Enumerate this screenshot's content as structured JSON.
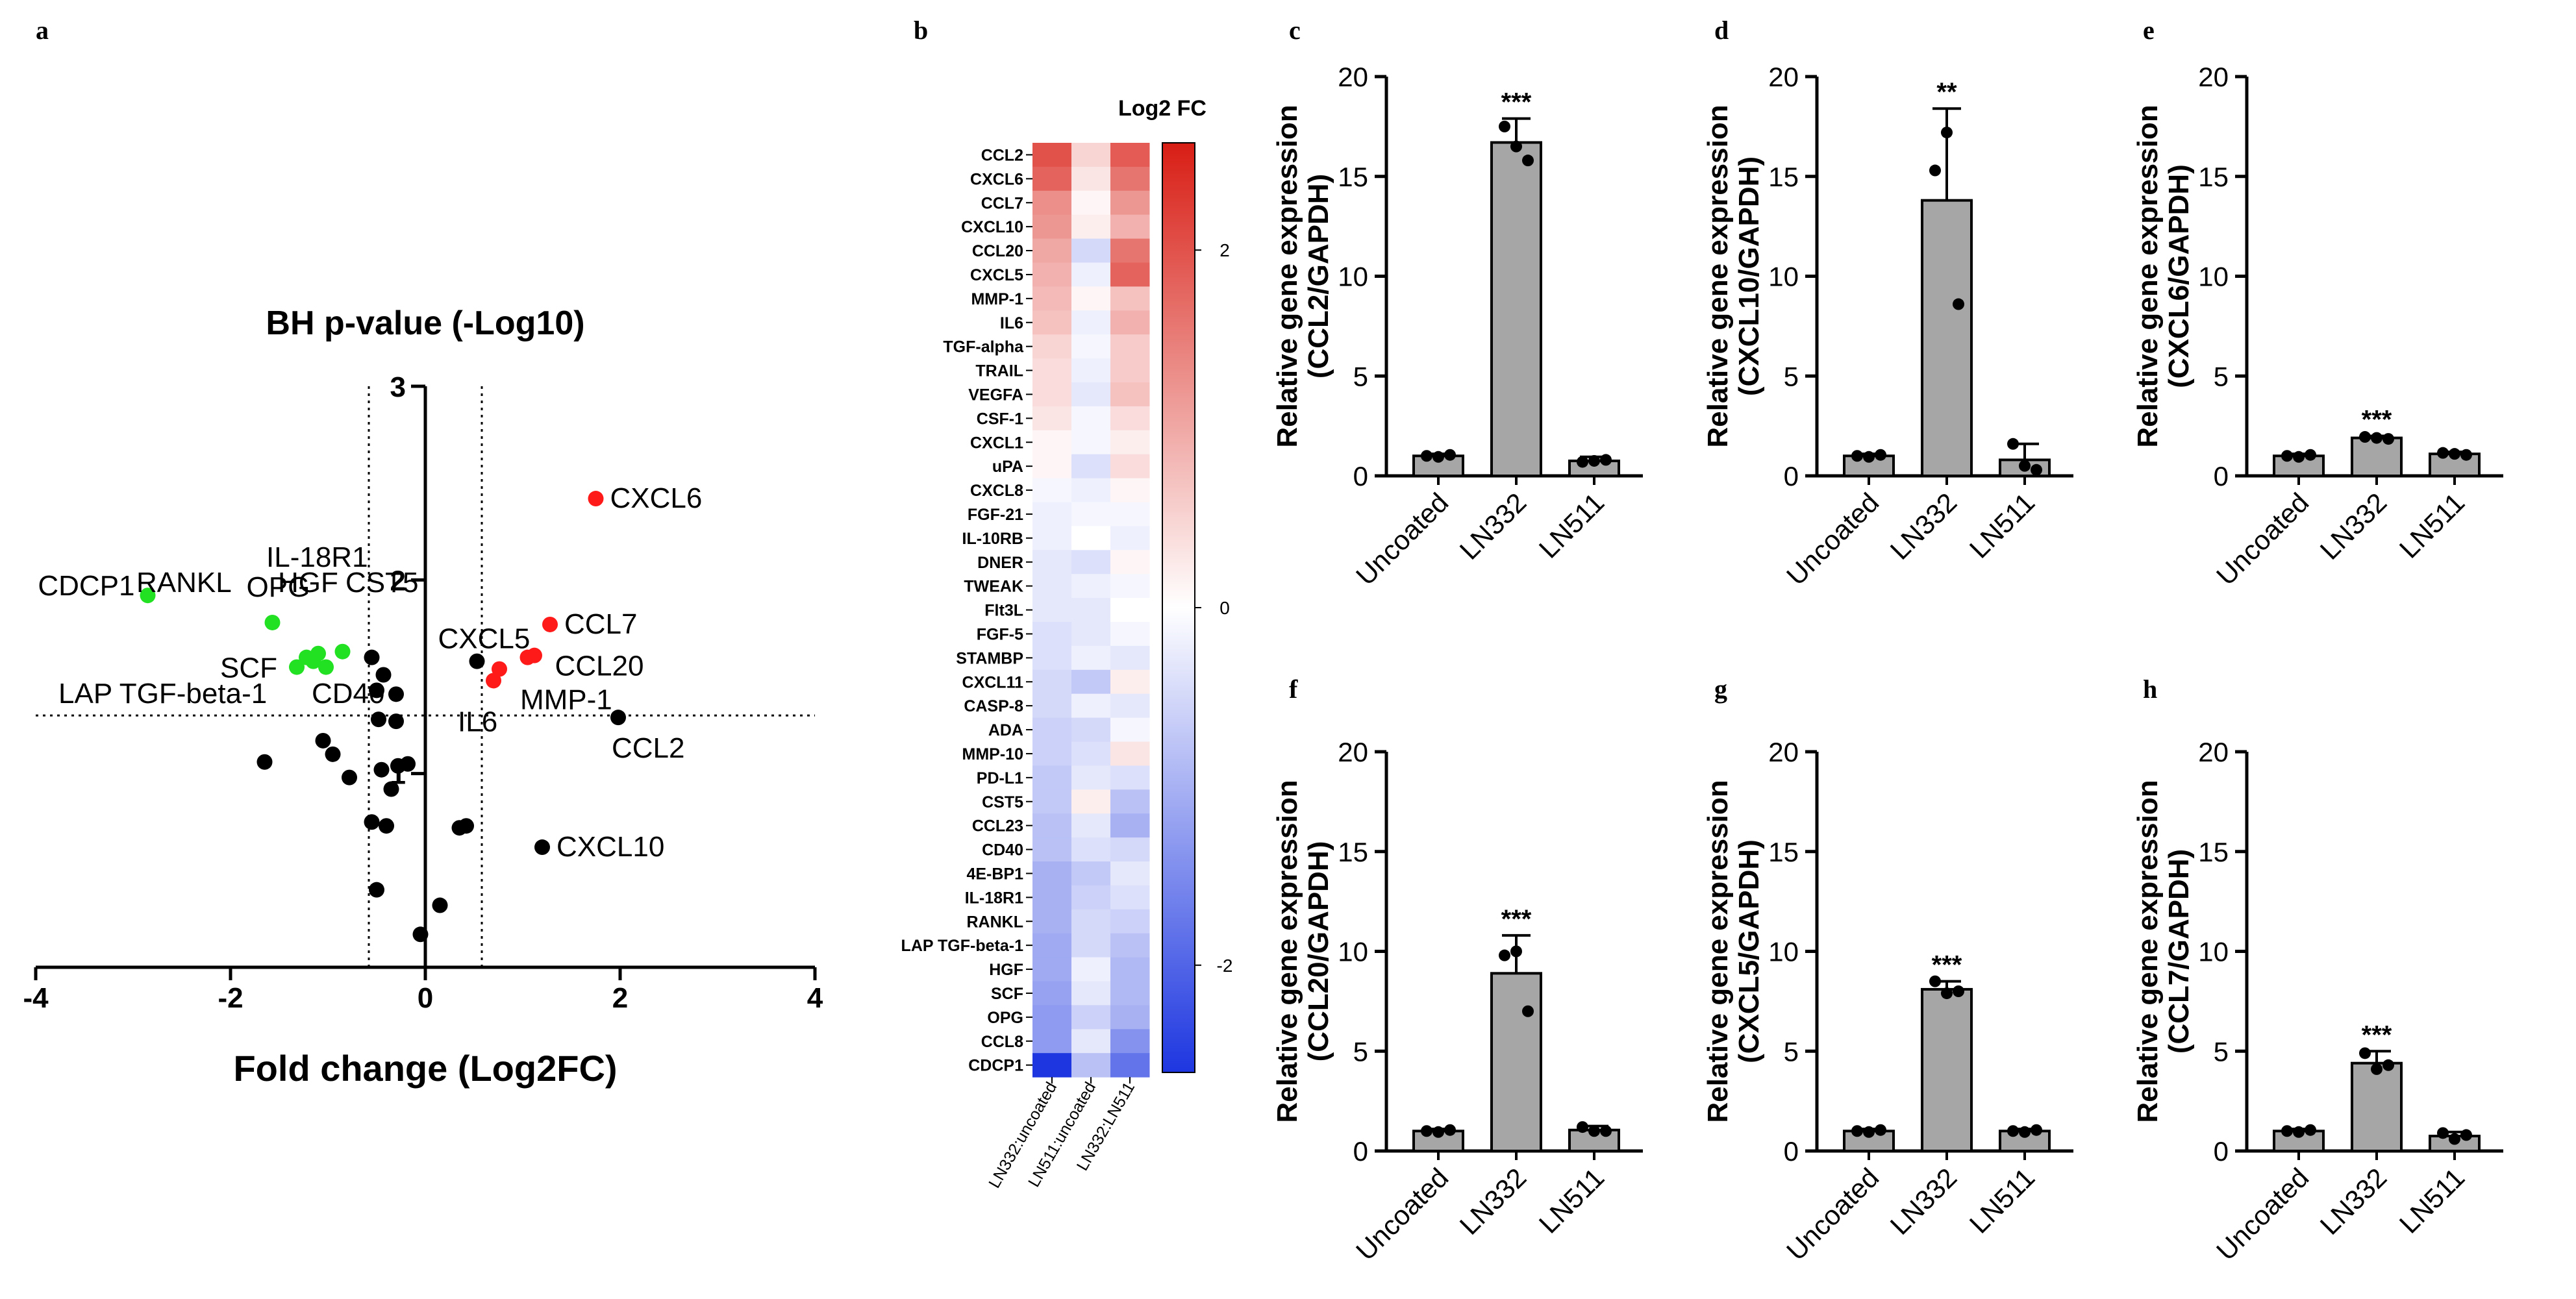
{
  "panel_letters": [
    "a",
    "b",
    "c",
    "d",
    "e",
    "f",
    "g",
    "h"
  ],
  "chart_data": [
    {
      "id": "volcano",
      "type": "scatter",
      "panel": "a",
      "title": "BH p-value (-Log10)",
      "xlabel": "Fold change (Log2FC)",
      "xlim": [
        -4,
        4
      ],
      "ylim": [
        0,
        3
      ],
      "xticks": [
        -4,
        -2,
        0,
        2,
        4
      ],
      "yticks": [
        1,
        2,
        3
      ],
      "xtick_labels": [
        "-4",
        "-2",
        "0",
        "2",
        "4"
      ],
      "ytick_labels": [
        "1",
        "2",
        "3"
      ],
      "threshold_x": [
        -0.58,
        0.58
      ],
      "threshold_y": 1.3,
      "colors": {
        "up": "#ff1a1a",
        "down": "#22e022",
        "ns": "#000000"
      },
      "points": [
        {
          "x": 1.75,
          "y": 2.42,
          "status": "up",
          "label": "CXCL6"
        },
        {
          "x": 1.28,
          "y": 1.77,
          "status": "up",
          "label": "CCL7"
        },
        {
          "x": 1.05,
          "y": 1.6,
          "status": "up",
          "label": "CCL20"
        },
        {
          "x": 1.12,
          "y": 1.61,
          "status": "up",
          "label": ""
        },
        {
          "x": 0.76,
          "y": 1.54,
          "status": "up",
          "label": "MMP-1"
        },
        {
          "x": 0.7,
          "y": 1.48,
          "status": "up",
          "label": "IL6"
        },
        {
          "x": 0.53,
          "y": 1.58,
          "status": "ns",
          "label": "CXCL5"
        },
        {
          "x": 1.98,
          "y": 1.29,
          "status": "ns",
          "label": "CCL2"
        },
        {
          "x": 1.2,
          "y": 0.62,
          "status": "ns",
          "label": "CXCL10"
        },
        {
          "x": -2.85,
          "y": 1.92,
          "status": "down",
          "label": "CDCP1"
        },
        {
          "x": -1.57,
          "y": 1.78,
          "status": "down",
          "label": "OPG"
        },
        {
          "x": -1.32,
          "y": 1.55,
          "status": "down",
          "label": "SCF"
        },
        {
          "x": -1.22,
          "y": 1.6,
          "status": "down",
          "label": ""
        },
        {
          "x": -1.15,
          "y": 1.58,
          "status": "down",
          "label": ""
        },
        {
          "x": -1.1,
          "y": 1.62,
          "status": "down",
          "label": ""
        },
        {
          "x": -1.02,
          "y": 1.55,
          "status": "down",
          "label": ""
        },
        {
          "x": -0.85,
          "y": 1.63,
          "status": "down",
          "label": ""
        },
        {
          "x": -0.55,
          "y": 1.6,
          "status": "ns",
          "label": ""
        },
        {
          "x": -0.43,
          "y": 1.51,
          "status": "ns",
          "label": ""
        },
        {
          "x": -0.5,
          "y": 1.43,
          "status": "ns",
          "label": ""
        },
        {
          "x": -0.3,
          "y": 1.41,
          "status": "ns",
          "label": ""
        },
        {
          "x": -0.48,
          "y": 1.28,
          "status": "ns",
          "label": ""
        },
        {
          "x": -0.3,
          "y": 1.27,
          "status": "ns",
          "label": ""
        },
        {
          "x": -1.05,
          "y": 1.17,
          "status": "ns",
          "label": ""
        },
        {
          "x": -0.95,
          "y": 1.1,
          "status": "ns",
          "label": ""
        },
        {
          "x": -1.65,
          "y": 1.06,
          "status": "ns",
          "label": ""
        },
        {
          "x": -0.45,
          "y": 1.02,
          "status": "ns",
          "label": ""
        },
        {
          "x": -0.28,
          "y": 1.04,
          "status": "ns",
          "label": ""
        },
        {
          "x": -0.18,
          "y": 1.05,
          "status": "ns",
          "label": ""
        },
        {
          "x": -0.78,
          "y": 0.98,
          "status": "ns",
          "label": ""
        },
        {
          "x": -0.35,
          "y": 0.92,
          "status": "ns",
          "label": ""
        },
        {
          "x": -0.55,
          "y": 0.75,
          "status": "ns",
          "label": ""
        },
        {
          "x": -0.4,
          "y": 0.73,
          "status": "ns",
          "label": ""
        },
        {
          "x": 0.35,
          "y": 0.72,
          "status": "ns",
          "label": ""
        },
        {
          "x": 0.42,
          "y": 0.73,
          "status": "ns",
          "label": ""
        },
        {
          "x": -0.5,
          "y": 0.4,
          "status": "ns",
          "label": ""
        },
        {
          "x": 0.15,
          "y": 0.32,
          "status": "ns",
          "label": ""
        },
        {
          "x": -0.05,
          "y": 0.17,
          "status": "ns",
          "label": ""
        }
      ],
      "extra_labels": [
        "IL-18R1",
        "RANKL",
        "HGF",
        "CST5",
        "LAP TGF-beta-1",
        "CD40"
      ]
    },
    {
      "id": "heatmap",
      "type": "heatmap",
      "panel": "b",
      "title": "Log2 FC",
      "columns": [
        "LN332:uncoated",
        "LN511:uncoated",
        "LN332:LN511"
      ],
      "colorbar_ticks": [
        2,
        0,
        -2
      ],
      "colorbar_tick_labels": [
        "2",
        "0",
        "-2"
      ],
      "vmin": -2.6,
      "vmax": 2.6,
      "colors": {
        "low": "#1d36e0",
        "mid": "#ffffff",
        "high": "#d81e15"
      },
      "rows": [
        {
          "label": "CCL2",
          "values": [
            2.0,
            0.5,
            1.9
          ]
        },
        {
          "label": "CXCL6",
          "values": [
            1.8,
            0.3,
            1.6
          ]
        },
        {
          "label": "CCL7",
          "values": [
            1.3,
            0.1,
            1.2
          ]
        },
        {
          "label": "CXCL10",
          "values": [
            1.2,
            0.2,
            0.9
          ]
        },
        {
          "label": "CCL20",
          "values": [
            1.0,
            -0.5,
            1.6
          ]
        },
        {
          "label": "CXCL5",
          "values": [
            0.9,
            -0.2,
            1.8
          ]
        },
        {
          "label": "MMP-1",
          "values": [
            0.8,
            0.1,
            0.7
          ]
        },
        {
          "label": "IL6",
          "values": [
            0.7,
            -0.2,
            0.9
          ]
        },
        {
          "label": "TGF-alpha",
          "values": [
            0.5,
            -0.1,
            0.6
          ]
        },
        {
          "label": "TRAIL",
          "values": [
            0.4,
            -0.2,
            0.6
          ]
        },
        {
          "label": "VEGFA",
          "values": [
            0.4,
            -0.3,
            0.7
          ]
        },
        {
          "label": "CSF-1",
          "values": [
            0.3,
            -0.1,
            0.4
          ]
        },
        {
          "label": "CXCL1",
          "values": [
            0.1,
            -0.1,
            0.2
          ]
        },
        {
          "label": "uPA",
          "values": [
            0.1,
            -0.4,
            0.4
          ]
        },
        {
          "label": "CXCL8",
          "values": [
            -0.1,
            -0.2,
            0.1
          ]
        },
        {
          "label": "FGF-21",
          "values": [
            -0.2,
            -0.1,
            -0.1
          ]
        },
        {
          "label": "IL-10RB",
          "values": [
            -0.2,
            0.0,
            -0.2
          ]
        },
        {
          "label": "DNER",
          "values": [
            -0.3,
            -0.4,
            0.1
          ]
        },
        {
          "label": "TWEAK",
          "values": [
            -0.3,
            -0.2,
            -0.1
          ]
        },
        {
          "label": "Flt3L",
          "values": [
            -0.3,
            -0.3,
            0.0
          ]
        },
        {
          "label": "FGF-5",
          "values": [
            -0.4,
            -0.3,
            -0.1
          ]
        },
        {
          "label": "STAMBP",
          "values": [
            -0.4,
            -0.2,
            -0.3
          ]
        },
        {
          "label": "CXCL11",
          "values": [
            -0.5,
            -0.7,
            0.2
          ]
        },
        {
          "label": "CASP-8",
          "values": [
            -0.5,
            -0.2,
            -0.3
          ]
        },
        {
          "label": "ADA",
          "values": [
            -0.6,
            -0.5,
            -0.1
          ]
        },
        {
          "label": "MMP-10",
          "values": [
            -0.6,
            -0.4,
            0.3
          ]
        },
        {
          "label": "PD-L1",
          "values": [
            -0.7,
            -0.3,
            -0.4
          ]
        },
        {
          "label": "CST5",
          "values": [
            -0.7,
            0.2,
            -0.8
          ]
        },
        {
          "label": "CCL23",
          "values": [
            -0.8,
            -0.3,
            -1.0
          ]
        },
        {
          "label": "CD40",
          "values": [
            -0.8,
            -0.4,
            -0.5
          ]
        },
        {
          "label": "4E-BP1",
          "values": [
            -1.0,
            -0.7,
            -0.3
          ]
        },
        {
          "label": "IL-18R1",
          "values": [
            -1.0,
            -0.6,
            -0.4
          ]
        },
        {
          "label": "RANKL",
          "values": [
            -1.0,
            -0.5,
            -0.6
          ]
        },
        {
          "label": "LAP TGF-beta-1",
          "values": [
            -1.1,
            -0.5,
            -0.8
          ]
        },
        {
          "label": "HGF",
          "values": [
            -1.1,
            -0.2,
            -0.9
          ]
        },
        {
          "label": "SCF",
          "values": [
            -1.2,
            -0.3,
            -0.9
          ]
        },
        {
          "label": "OPG",
          "values": [
            -1.3,
            -0.6,
            -1.0
          ]
        },
        {
          "label": "CCL8",
          "values": [
            -1.3,
            -0.3,
            -1.4
          ]
        },
        {
          "label": "CDCP1",
          "values": [
            -2.6,
            -0.8,
            -1.8
          ]
        }
      ]
    },
    {
      "id": "bar-c",
      "type": "bar",
      "panel": "c",
      "categories": [
        "Uncoated",
        "LN332",
        "LN511"
      ],
      "values": [
        1.0,
        16.7,
        0.75
      ],
      "errors": [
        0.1,
        1.2,
        0.2
      ],
      "replicates": [
        [
          1.0,
          0.95,
          1.05
        ],
        [
          17.5,
          16.5,
          15.8
        ],
        [
          0.7,
          0.75,
          0.8
        ]
      ],
      "significance": [
        "",
        "***",
        ""
      ],
      "ylabel_line1": "Relative gene expression",
      "ylabel_line2": "(CCL2/GAPDH)",
      "ylim": [
        0,
        20
      ],
      "yticks": [
        0,
        5,
        10,
        15,
        20
      ],
      "ytick_labels": [
        "0",
        "5",
        "10",
        "15",
        "20"
      ]
    },
    {
      "id": "bar-d",
      "type": "bar",
      "panel": "d",
      "categories": [
        "Uncoated",
        "LN332",
        "LN511"
      ],
      "values": [
        1.0,
        13.8,
        0.8
      ],
      "errors": [
        0.1,
        4.6,
        0.8
      ],
      "replicates": [
        [
          1.0,
          0.95,
          1.05
        ],
        [
          15.3,
          17.2,
          8.6
        ],
        [
          1.6,
          0.5,
          0.3
        ]
      ],
      "significance": [
        "",
        "**",
        ""
      ],
      "ylabel_line1": "Relative gene expression",
      "ylabel_line2": "(CXCL10/GAPDH)",
      "ylim": [
        0,
        20
      ],
      "yticks": [
        0,
        5,
        10,
        15,
        20
      ],
      "ytick_labels": [
        "0",
        "5",
        "10",
        "15",
        "20"
      ]
    },
    {
      "id": "bar-e",
      "type": "bar",
      "panel": "e",
      "categories": [
        "Uncoated",
        "LN332",
        "LN511"
      ],
      "values": [
        1.0,
        1.9,
        1.1
      ],
      "errors": [
        0.1,
        0.1,
        0.1
      ],
      "replicates": [
        [
          1.0,
          0.95,
          1.05
        ],
        [
          1.95,
          1.9,
          1.85
        ],
        [
          1.15,
          1.1,
          1.05
        ]
      ],
      "significance": [
        "",
        "***",
        ""
      ],
      "ylabel_line1": "Relative gene expression",
      "ylabel_line2": "(CXCL6/GAPDH)",
      "ylim": [
        0,
        20
      ],
      "yticks": [
        0,
        5,
        10,
        15,
        20
      ],
      "ytick_labels": [
        "0",
        "5",
        "10",
        "15",
        "20"
      ]
    },
    {
      "id": "bar-f",
      "type": "bar",
      "panel": "f",
      "categories": [
        "Uncoated",
        "LN332",
        "LN511"
      ],
      "values": [
        1.0,
        8.9,
        1.05
      ],
      "errors": [
        0.1,
        1.9,
        0.2
      ],
      "replicates": [
        [
          1.0,
          0.95,
          1.05
        ],
        [
          9.8,
          10.0,
          7.0
        ],
        [
          1.2,
          1.0,
          1.0
        ]
      ],
      "significance": [
        "",
        "***",
        ""
      ],
      "ylabel_line1": "Relative gene expression",
      "ylabel_line2": "(CCL20/GAPDH)",
      "ylim": [
        0,
        20
      ],
      "yticks": [
        0,
        5,
        10,
        15,
        20
      ],
      "ytick_labels": [
        "0",
        "5",
        "10",
        "15",
        "20"
      ]
    },
    {
      "id": "bar-g",
      "type": "bar",
      "panel": "g",
      "categories": [
        "Uncoated",
        "LN332",
        "LN511"
      ],
      "values": [
        1.0,
        8.1,
        1.0
      ],
      "errors": [
        0.1,
        0.4,
        0.1
      ],
      "replicates": [
        [
          1.0,
          0.95,
          1.05
        ],
        [
          8.5,
          7.9,
          8.0
        ],
        [
          1.0,
          0.95,
          1.05
        ]
      ],
      "significance": [
        "",
        "***",
        ""
      ],
      "ylabel_line1": "Relative gene expression",
      "ylabel_line2": "(CXCL5/GAPDH)",
      "ylim": [
        0,
        20
      ],
      "yticks": [
        0,
        5,
        10,
        15,
        20
      ],
      "ytick_labels": [
        "0",
        "5",
        "10",
        "15",
        "20"
      ]
    },
    {
      "id": "bar-h",
      "type": "bar",
      "panel": "h",
      "categories": [
        "Uncoated",
        "LN332",
        "LN511"
      ],
      "values": [
        1.0,
        4.4,
        0.75
      ],
      "errors": [
        0.1,
        0.6,
        0.2
      ],
      "replicates": [
        [
          1.0,
          0.95,
          1.05
        ],
        [
          4.9,
          4.1,
          4.3
        ],
        [
          0.9,
          0.6,
          0.8
        ]
      ],
      "significance": [
        "",
        "***",
        ""
      ],
      "ylabel_line1": "Relative gene expression",
      "ylabel_line2": "(CCL7/GAPDH)",
      "ylim": [
        0,
        20
      ],
      "yticks": [
        0,
        5,
        10,
        15,
        20
      ],
      "ytick_labels": [
        "0",
        "5",
        "10",
        "15",
        "20"
      ]
    }
  ]
}
